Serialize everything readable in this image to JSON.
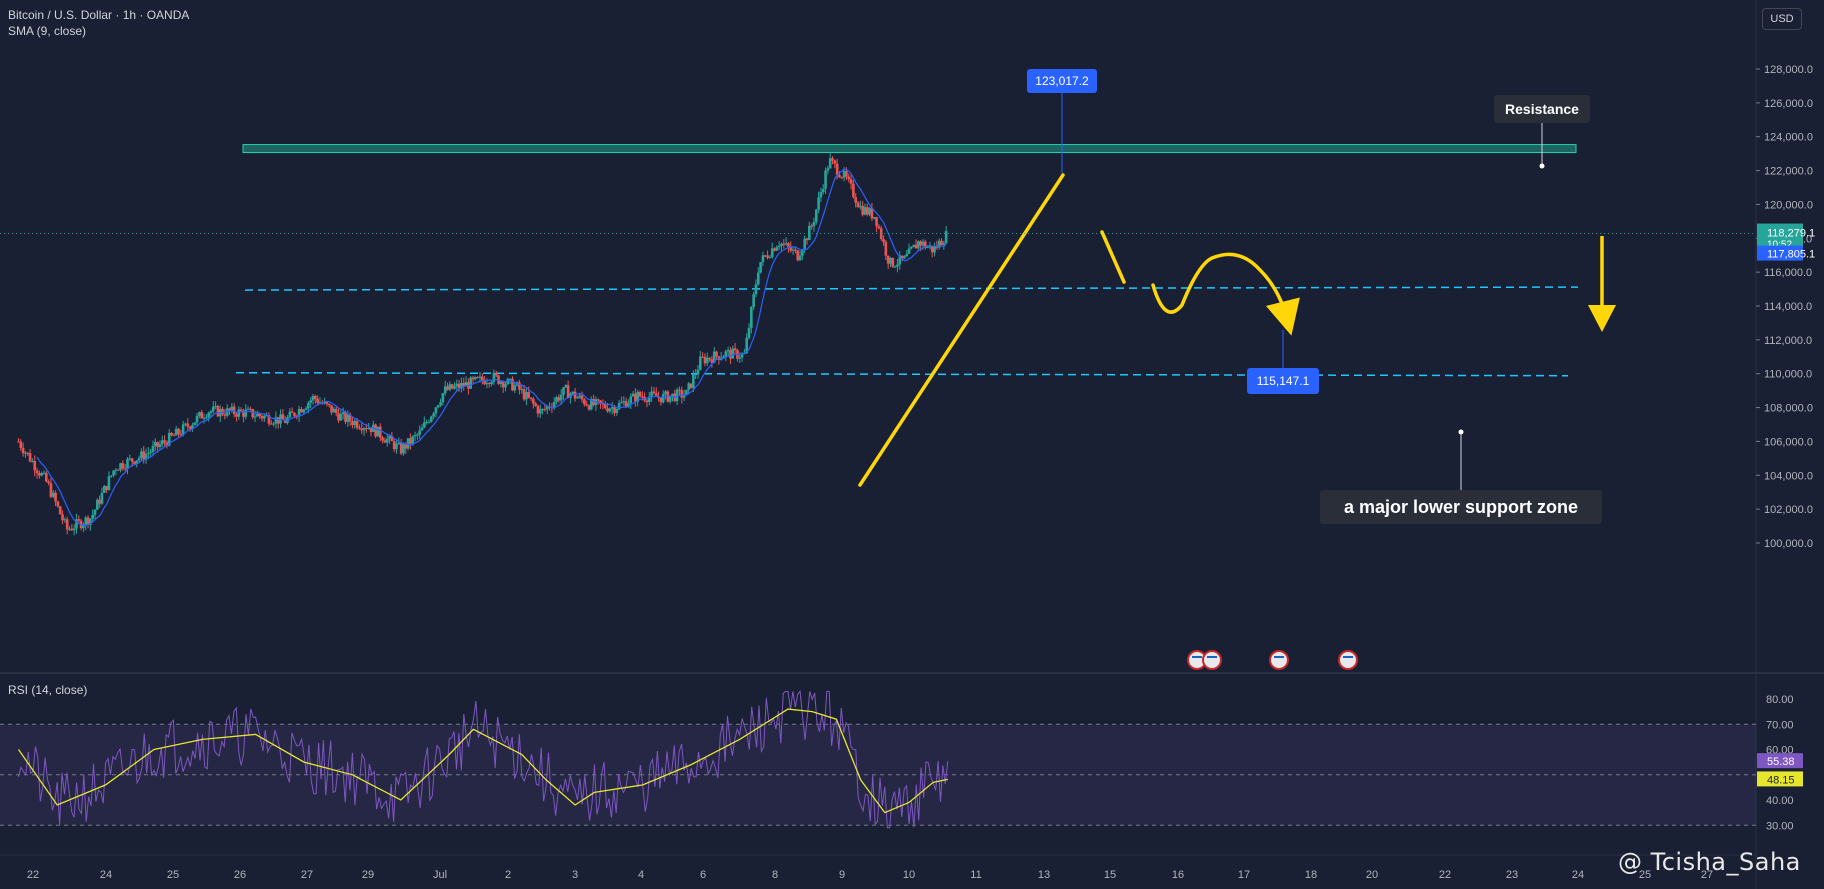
{
  "header": {
    "symbol_line": "Bitcoin / U.S. Dollar · 1h · OANDA",
    "sma_label": "SMA (9, close)",
    "rsi_label": "RSI (14, close)",
    "currency_button": "USD"
  },
  "watermark": "@ Tcisha_Saha",
  "colors": {
    "background": "#1a2033",
    "up_candle": "#26a69a",
    "down_candle": "#ef5350",
    "sma": "#2962ff",
    "annotation_yellow": "#ffd60a",
    "support_dashed": "#1ec8ff",
    "resistance_band": "#1f9e8b",
    "rsi_line": "#7e57c2",
    "rsi_ma": "#e6e62f",
    "callout_blue": "#2962ff"
  },
  "chart_data": [
    {
      "type": "candlestick",
      "title": "Bitcoin / U.S. Dollar · 1h · OANDA",
      "indicator": "SMA (9, close)",
      "y_axis": {
        "ylim": [
          98500,
          130000
        ],
        "ticks": [
          "128,000.0",
          "126,000.0",
          "124,000.0",
          "122,000.0",
          "120,000.0",
          "118,000.0",
          "116,000.0",
          "114,000.0",
          "112,000.0",
          "110,000.0",
          "108,000.0",
          "106,000.0",
          "104,000.0",
          "102,000.0",
          "100,000.0"
        ]
      },
      "x_axis": {
        "tick_labels": [
          "22",
          "24",
          "25",
          "26",
          "27",
          "29",
          "Jul",
          "2",
          "3",
          "4",
          "6",
          "8",
          "9",
          "10",
          "11",
          "13",
          "15",
          "16",
          "17",
          "18",
          "20",
          "22",
          "23",
          "24",
          "25",
          "27"
        ]
      },
      "price_path": [
        {
          "day": -0.3,
          "price": 106000
        },
        {
          "day": 0.3,
          "price": 103500
        },
        {
          "day": 0.7,
          "price": 100800
        },
        {
          "day": 1.2,
          "price": 101500
        },
        {
          "day": 1.7,
          "price": 104500
        },
        {
          "day": 2.3,
          "price": 105200
        },
        {
          "day": 3.0,
          "price": 106500
        },
        {
          "day": 3.6,
          "price": 107800
        },
        {
          "day": 4.4,
          "price": 107700
        },
        {
          "day": 5.2,
          "price": 107200
        },
        {
          "day": 5.8,
          "price": 108600
        },
        {
          "day": 6.4,
          "price": 107400
        },
        {
          "day": 7.0,
          "price": 106800
        },
        {
          "day": 7.6,
          "price": 105500
        },
        {
          "day": 8.0,
          "price": 106500
        },
        {
          "day": 8.5,
          "price": 109000
        },
        {
          "day": 9.0,
          "price": 109400
        },
        {
          "day": 9.5,
          "price": 109800
        },
        {
          "day": 10.0,
          "price": 109200
        },
        {
          "day": 10.5,
          "price": 107700
        },
        {
          "day": 11.0,
          "price": 109000
        },
        {
          "day": 11.5,
          "price": 108200
        },
        {
          "day": 12.0,
          "price": 108000
        },
        {
          "day": 12.5,
          "price": 108700
        },
        {
          "day": 13.0,
          "price": 108600
        },
        {
          "day": 13.5,
          "price": 108800
        },
        {
          "day": 13.8,
          "price": 110800
        },
        {
          "day": 14.3,
          "price": 111200
        },
        {
          "day": 14.7,
          "price": 111100
        },
        {
          "day": 15.0,
          "price": 116500
        },
        {
          "day": 15.4,
          "price": 117800
        },
        {
          "day": 15.8,
          "price": 117000
        },
        {
          "day": 16.1,
          "price": 118800
        },
        {
          "day": 16.45,
          "price": 122600
        },
        {
          "day": 16.8,
          "price": 121500
        },
        {
          "day": 17.1,
          "price": 119800
        },
        {
          "day": 17.4,
          "price": 119300
        },
        {
          "day": 17.7,
          "price": 116500
        },
        {
          "day": 18.0,
          "price": 116700
        },
        {
          "day": 18.3,
          "price": 117800
        },
        {
          "day": 18.6,
          "price": 117300
        },
        {
          "day": 18.9,
          "price": 118300
        }
      ],
      "last_price": {
        "value": "118,279.1",
        "countdown": "10:52"
      },
      "sma_value": "117,805.1",
      "annotations": {
        "high_callout": "123,017.2",
        "target_callout": "115,147.1",
        "resistance_label": "Resistance",
        "resistance_level": 123300,
        "upper_support_level": 115000,
        "lower_support_level": 110000,
        "support_label": "a major lower support zone"
      }
    },
    {
      "type": "line",
      "title": "RSI (14, close)",
      "ylim": [
        28,
        84
      ],
      "y_ticks": [
        "80.00",
        "70.00",
        "60.00",
        "50.00",
        "40.00",
        "30.00"
      ],
      "bands": [
        70,
        30
      ],
      "midline": 50,
      "rsi_value": "55.38",
      "rsi_ma_value": "48.15",
      "rsi_ma_path": [
        {
          "day": -0.3,
          "value": 60
        },
        {
          "day": 0.5,
          "value": 38
        },
        {
          "day": 1.5,
          "value": 46
        },
        {
          "day": 2.5,
          "value": 60
        },
        {
          "day": 3.5,
          "value": 64
        },
        {
          "day": 4.6,
          "value": 66
        },
        {
          "day": 5.6,
          "value": 55
        },
        {
          "day": 6.6,
          "value": 50
        },
        {
          "day": 7.6,
          "value": 40
        },
        {
          "day": 8.6,
          "value": 58
        },
        {
          "day": 9.1,
          "value": 68
        },
        {
          "day": 10.1,
          "value": 58
        },
        {
          "day": 10.6,
          "value": 48
        },
        {
          "day": 11.2,
          "value": 38
        },
        {
          "day": 11.6,
          "value": 43
        },
        {
          "day": 12.6,
          "value": 46
        },
        {
          "day": 13.6,
          "value": 54
        },
        {
          "day": 14.6,
          "value": 64
        },
        {
          "day": 15.6,
          "value": 76
        },
        {
          "day": 16.1,
          "value": 75
        },
        {
          "day": 16.6,
          "value": 72
        },
        {
          "day": 17.1,
          "value": 48
        },
        {
          "day": 17.6,
          "value": 35
        },
        {
          "day": 18.1,
          "value": 39
        },
        {
          "day": 18.6,
          "value": 47
        },
        {
          "day": 18.9,
          "value": 48.15
        }
      ]
    }
  ],
  "event_markers": [
    {
      "type": "event",
      "icon": "flash-us-flag-icon"
    },
    {
      "type": "event",
      "icon": "us-flag-icon"
    },
    {
      "type": "event",
      "icon": "us-flag-icon"
    }
  ]
}
